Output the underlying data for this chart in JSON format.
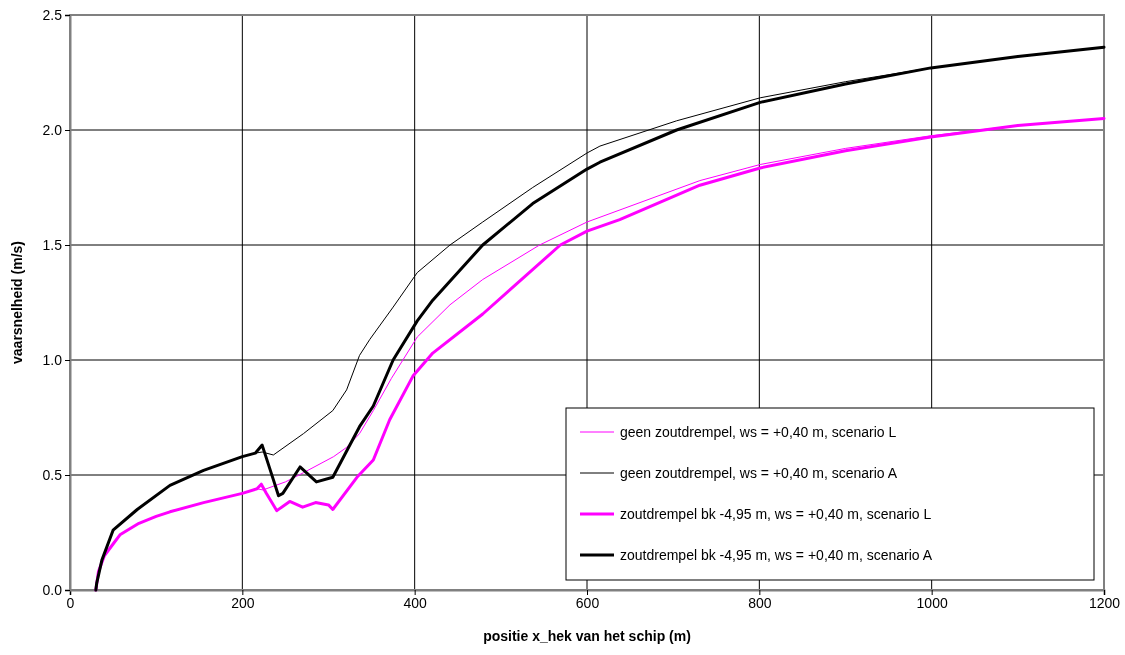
{
  "chart_data": {
    "type": "line",
    "xlabel": "positie x_hek van het schip (m)",
    "ylabel": "vaarsnelheid (m/s)",
    "xlim": [
      0,
      1200
    ],
    "xticks": [
      0,
      200,
      400,
      600,
      800,
      1000,
      1200
    ],
    "ylim": [
      0,
      2.5
    ],
    "yticks": [
      {
        "value": 0,
        "label": "0.0"
      },
      {
        "value": 0.5,
        "label": "0.5"
      },
      {
        "value": 1,
        "label": "1.0"
      },
      {
        "value": 1.5,
        "label": "1.5"
      },
      {
        "value": 2,
        "label": "2.0"
      },
      {
        "value": 2.5,
        "label": "2.5"
      }
    ],
    "grid": true,
    "legend": "bottom right",
    "marker": "none",
    "line_style": "solid",
    "series": [
      {
        "name": "geen zoutdrempel, ws = +0,40 m, scenario L",
        "color": "#ff00ff",
        "x": [
          30,
          33,
          40,
          50,
          58,
          80,
          100,
          116,
          155,
          200,
          217,
          224,
          250,
          271,
          306,
          321,
          336,
          352,
          373,
          403,
          441,
          479,
          545,
          600,
          731,
          801,
          900,
          999,
          1100,
          1200
        ],
        "values": [
          0,
          0.08,
          0.15,
          0.2,
          0.24,
          0.29,
          0.32,
          0.34,
          0.38,
          0.42,
          0.44,
          0.435,
          0.47,
          0.51,
          0.58,
          0.62,
          0.68,
          0.78,
          0.92,
          1.1,
          1.24,
          1.35,
          1.5,
          1.6,
          1.78,
          1.85,
          1.92,
          1.975,
          2.02,
          2.05
        ]
      },
      {
        "name": "geen zoutdrempel, ws = +0,40 m, scenario A",
        "color": "#000000",
        "x": [
          30,
          31,
          37,
          50,
          78,
          116,
          155,
          200,
          215,
          223,
          236,
          271,
          305,
          321,
          336,
          348,
          375,
          403,
          441,
          479,
          537,
          600,
          615,
          704,
          801,
          900,
          999,
          1100,
          1200
        ],
        "values": [
          0,
          0.03,
          0.13,
          0.26,
          0.35,
          0.455,
          0.52,
          0.58,
          0.595,
          0.6,
          0.587,
          0.68,
          0.78,
          0.87,
          1.02,
          1.09,
          1.23,
          1.38,
          1.5,
          1.6,
          1.75,
          1.9,
          1.93,
          2.04,
          2.14,
          2.21,
          2.27,
          2.32,
          2.36
        ]
      },
      {
        "name": "zoutdrempel bk -4,95 m, ws = +0,40 m, scenario L",
        "color": "#ff00ff",
        "x": [
          30,
          33,
          40,
          50,
          58,
          80,
          100,
          116,
          155,
          200,
          217,
          222,
          228,
          240,
          255,
          270,
          285,
          300,
          305,
          333,
          352,
          371,
          398,
          421,
          479,
          569,
          600,
          638,
          731,
          801,
          900,
          999,
          1100,
          1200
        ],
        "values": [
          0,
          0.08,
          0.15,
          0.2,
          0.24,
          0.29,
          0.32,
          0.34,
          0.38,
          0.42,
          0.44,
          0.46,
          0.42,
          0.345,
          0.385,
          0.36,
          0.38,
          0.37,
          0.35,
          0.49,
          0.565,
          0.74,
          0.93,
          1.03,
          1.2,
          1.5,
          1.56,
          1.61,
          1.76,
          1.835,
          1.91,
          1.97,
          2.02,
          2.05
        ]
      },
      {
        "name": "zoutdrempel bk -4,95 m, ws = +0,40 m, scenario A",
        "color": "#000000",
        "x": [
          30,
          31,
          37,
          50,
          78,
          116,
          155,
          200,
          215,
          223,
          236,
          242,
          247,
          267,
          286,
          305,
          336,
          352,
          375,
          403,
          421,
          479,
          537,
          600,
          615,
          704,
          801,
          900,
          999,
          1100,
          1200
        ],
        "values": [
          0,
          0.03,
          0.13,
          0.26,
          0.35,
          0.455,
          0.52,
          0.58,
          0.595,
          0.63,
          0.48,
          0.41,
          0.42,
          0.535,
          0.47,
          0.49,
          0.71,
          0.8,
          1.0,
          1.17,
          1.26,
          1.5,
          1.68,
          1.83,
          1.86,
          2.0,
          2.12,
          2.2,
          2.27,
          2.32,
          2.36
        ]
      }
    ]
  }
}
